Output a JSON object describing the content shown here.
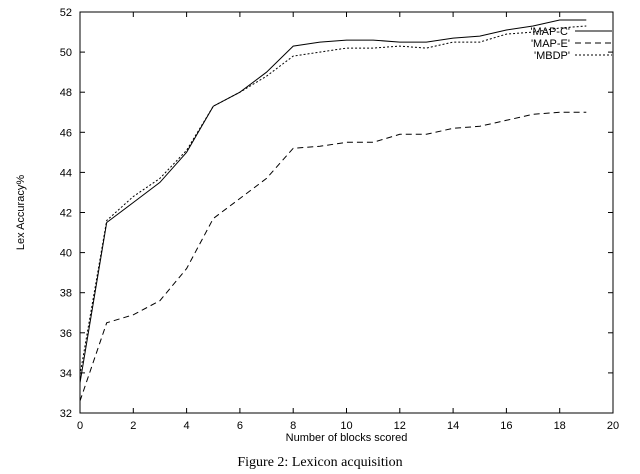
{
  "chart_data": {
    "type": "line",
    "xlabel": "Number of blocks scored",
    "ylabel": "Lex Accuracy%",
    "xlim": [
      0,
      20
    ],
    "ylim": [
      32,
      52
    ],
    "xticks": [
      0,
      2,
      4,
      6,
      8,
      10,
      12,
      14,
      16,
      18,
      20
    ],
    "yticks": [
      32,
      34,
      36,
      38,
      40,
      42,
      44,
      46,
      48,
      50,
      52
    ],
    "grid": false,
    "legend_position": "top-right",
    "x": [
      0,
      1,
      2,
      3,
      4,
      5,
      6,
      7,
      8,
      9,
      10,
      11,
      12,
      13,
      14,
      15,
      16,
      17,
      18,
      19
    ],
    "series": [
      {
        "name": "'MAP-C'",
        "style": "solid",
        "values": [
          33.5,
          41.5,
          42.5,
          43.5,
          45.0,
          47.3,
          48.0,
          49.0,
          50.3,
          50.5,
          50.6,
          50.6,
          50.5,
          50.5,
          50.7,
          50.8,
          51.1,
          51.3,
          51.6,
          51.6
        ]
      },
      {
        "name": "'MAP-E'",
        "style": "long-dash",
        "values": [
          32.6,
          36.5,
          36.9,
          37.6,
          39.2,
          41.7,
          42.7,
          43.7,
          45.2,
          45.3,
          45.5,
          45.5,
          45.9,
          45.9,
          46.2,
          46.3,
          46.6,
          46.9,
          47.0,
          47.0
        ]
      },
      {
        "name": "'MBDP'",
        "style": "short-dash",
        "values": [
          33.9,
          41.6,
          42.8,
          43.7,
          45.1,
          47.3,
          48.0,
          48.8,
          49.8,
          50.0,
          50.2,
          50.2,
          50.3,
          50.2,
          50.5,
          50.5,
          50.9,
          51.0,
          51.2,
          51.3
        ]
      }
    ]
  },
  "caption": "Figure 2: Lexicon acquisition"
}
